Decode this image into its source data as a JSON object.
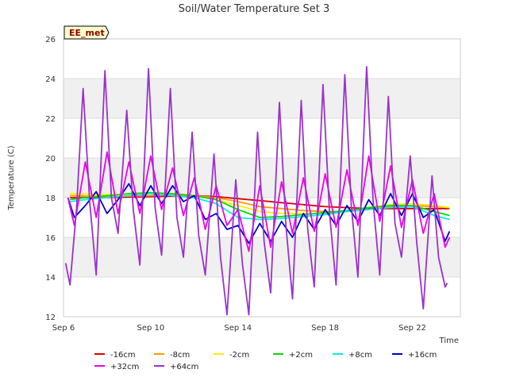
{
  "chart_data": {
    "type": "line",
    "title": "Soil/Water Temperature Set 3",
    "xlabel": "Time",
    "ylabel": "Temperature (C)",
    "badge": "EE_met",
    "ylim": [
      12,
      26
    ],
    "yticks": [
      12,
      14,
      16,
      18,
      20,
      22,
      24,
      26
    ],
    "xlim_days": [
      6.0,
      24.2
    ],
    "xticks": [
      {
        "day": 6,
        "label": "Sep 6"
      },
      {
        "day": 10,
        "label": "Sep 10"
      },
      {
        "day": 14,
        "label": "Sep 14"
      },
      {
        "day": 18,
        "label": "Sep 18"
      },
      {
        "day": 22,
        "label": "Sep 22"
      }
    ],
    "grid": true,
    "legend": "bottom",
    "series": [
      {
        "name": "-16cm",
        "color": "#dd0000",
        "x": [
          6.3,
          8,
          10,
          12,
          13,
          14,
          15,
          16,
          17,
          18,
          19,
          20,
          21,
          22,
          23,
          23.7
        ],
        "y": [
          18.0,
          18.0,
          18.05,
          18.1,
          18.05,
          17.95,
          17.85,
          17.75,
          17.65,
          17.55,
          17.5,
          17.45,
          17.45,
          17.45,
          17.45,
          17.45
        ]
      },
      {
        "name": "-8cm",
        "color": "#ff9900",
        "x": [
          6.3,
          8,
          10,
          11,
          12,
          13,
          14,
          15,
          16,
          17,
          18,
          19,
          20,
          21,
          22,
          23,
          23.7
        ],
        "y": [
          18.1,
          18.05,
          18.1,
          18.15,
          18.1,
          18.0,
          17.8,
          17.55,
          17.45,
          17.35,
          17.3,
          17.3,
          17.4,
          17.55,
          17.6,
          17.55,
          17.5
        ]
      },
      {
        "name": "-2cm",
        "color": "#ffee00",
        "x": [
          6.3,
          8,
          10,
          11,
          12,
          13,
          14,
          15,
          16,
          17,
          18,
          19,
          20,
          21,
          22,
          23,
          23.7
        ],
        "y": [
          18.2,
          18.15,
          18.2,
          18.2,
          18.1,
          17.9,
          17.6,
          17.3,
          17.2,
          17.2,
          17.2,
          17.3,
          17.5,
          17.65,
          17.7,
          17.6,
          17.5
        ]
      },
      {
        "name": "+2cm",
        "color": "#00dd00",
        "x": [
          6.3,
          7,
          8,
          9,
          10,
          11,
          12,
          13,
          14,
          15,
          16,
          17,
          18,
          19,
          20,
          21,
          22,
          23,
          23.7
        ],
        "y": [
          17.9,
          18.0,
          18.1,
          18.2,
          18.25,
          18.2,
          18.1,
          17.9,
          17.4,
          17.0,
          17.05,
          17.15,
          17.25,
          17.35,
          17.5,
          17.6,
          17.6,
          17.3,
          17.1
        ]
      },
      {
        "name": "+8cm",
        "color": "#00eeee",
        "x": [
          6.3,
          7,
          8,
          9,
          10,
          11,
          12,
          13,
          14,
          15,
          16,
          17,
          18,
          19,
          20,
          21,
          22,
          23,
          23.7
        ],
        "y": [
          17.8,
          17.9,
          18.0,
          18.1,
          18.2,
          18.1,
          18.0,
          17.7,
          17.0,
          16.9,
          16.95,
          17.05,
          17.15,
          17.3,
          17.4,
          17.5,
          17.55,
          17.1,
          16.9
        ]
      },
      {
        "name": "+16cm",
        "color": "#0000cc",
        "x": [
          6.2,
          6.5,
          7.0,
          7.5,
          8.0,
          8.5,
          9.0,
          9.5,
          10.0,
          10.5,
          11.0,
          11.5,
          12.0,
          12.5,
          13.0,
          13.5,
          14.0,
          14.5,
          15.0,
          15.5,
          16.0,
          16.5,
          17.0,
          17.5,
          18.0,
          18.5,
          19.0,
          19.5,
          20.0,
          20.5,
          21.0,
          21.5,
          22.0,
          22.5,
          23.0,
          23.5,
          23.7
        ],
        "y": [
          18.0,
          17.0,
          17.6,
          18.3,
          17.2,
          17.9,
          18.7,
          17.6,
          18.6,
          17.7,
          18.6,
          17.8,
          18.1,
          16.9,
          17.2,
          16.4,
          16.6,
          15.7,
          16.7,
          15.8,
          16.8,
          16.0,
          17.2,
          16.4,
          17.4,
          16.6,
          17.6,
          16.8,
          17.9,
          17.1,
          18.2,
          17.1,
          18.2,
          17.0,
          17.4,
          15.8,
          16.3
        ]
      },
      {
        "name": "+32cm",
        "color": "#ee00ee",
        "x": [
          6.2,
          6.5,
          7.0,
          7.5,
          8.0,
          8.5,
          9.0,
          9.5,
          10.0,
          10.5,
          11.0,
          11.5,
          12.0,
          12.5,
          13.0,
          13.5,
          14.0,
          14.5,
          15.0,
          15.5,
          16.0,
          16.5,
          17.0,
          17.5,
          18.0,
          18.5,
          19.0,
          19.5,
          20.0,
          20.5,
          21.0,
          21.5,
          22.0,
          22.5,
          23.0,
          23.5,
          23.7
        ],
        "y": [
          18.0,
          16.6,
          19.8,
          17.0,
          20.3,
          17.2,
          19.8,
          17.2,
          20.1,
          17.4,
          19.5,
          17.1,
          19.0,
          16.4,
          18.6,
          16.6,
          17.4,
          15.3,
          18.6,
          15.5,
          18.8,
          16.2,
          19.0,
          16.3,
          19.2,
          16.5,
          19.4,
          16.6,
          20.1,
          16.8,
          19.6,
          16.5,
          18.9,
          16.2,
          18.2,
          15.5,
          16.0
        ]
      },
      {
        "name": "+64cm",
        "color": "#9933cc",
        "x": [
          6.1,
          6.3,
          6.6,
          6.9,
          7.2,
          7.5,
          7.9,
          8.2,
          8.5,
          8.9,
          9.2,
          9.5,
          9.9,
          10.2,
          10.5,
          10.9,
          11.2,
          11.5,
          11.9,
          12.2,
          12.5,
          12.9,
          13.2,
          13.5,
          13.9,
          14.2,
          14.5,
          14.9,
          15.2,
          15.5,
          15.9,
          16.2,
          16.5,
          16.9,
          17.2,
          17.5,
          17.9,
          18.2,
          18.5,
          18.9,
          19.2,
          19.5,
          19.9,
          20.2,
          20.5,
          20.9,
          21.2,
          21.5,
          21.9,
          22.2,
          22.5,
          22.9,
          23.2,
          23.5,
          23.6
        ],
        "y": [
          14.7,
          13.6,
          17.5,
          23.5,
          17.8,
          14.1,
          24.4,
          18.0,
          16.2,
          22.4,
          17.4,
          14.6,
          24.5,
          17.5,
          15.1,
          23.5,
          17.0,
          15.0,
          21.3,
          16.1,
          14.1,
          20.2,
          15.0,
          12.1,
          18.9,
          14.7,
          12.1,
          21.3,
          15.8,
          13.2,
          22.8,
          16.6,
          12.9,
          22.9,
          16.4,
          13.5,
          23.7,
          17.2,
          13.6,
          24.2,
          17.6,
          14.0,
          24.6,
          17.8,
          14.1,
          23.1,
          16.7,
          15.0,
          20.1,
          15.7,
          12.4,
          19.1,
          15.0,
          13.5,
          13.7
        ]
      }
    ]
  }
}
